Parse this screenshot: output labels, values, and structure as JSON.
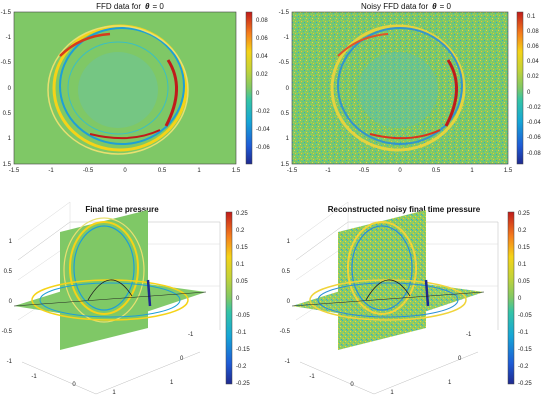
{
  "chart_data": [
    {
      "type": "heatmap",
      "title_prefix": "FFD data for",
      "title_theta": "θ",
      "title_suffix": "= 0",
      "xticks": [
        "-1.5",
        "-1",
        "-0.5",
        "0",
        "0.5",
        "1",
        "1.5"
      ],
      "yticks": [
        "-1.5",
        "-1",
        "-0.5",
        "0",
        "0.5",
        "1",
        "1.5"
      ],
      "xlim": [
        -1.5,
        1.5
      ],
      "ylim": [
        -1.5,
        1.5
      ],
      "colorbar": {
        "ticks": [
          "0.08",
          "0.06",
          "0.04",
          "0.02",
          "0",
          "-0.02",
          "-0.04",
          "-0.06"
        ],
        "range": [
          -0.075,
          0.09
        ]
      }
    },
    {
      "type": "heatmap",
      "title_prefix": "Noisy FFD data for",
      "title_theta": "θ",
      "title_suffix": "= 0",
      "xticks": [
        "-1.5",
        "-1",
        "-0.5",
        "0",
        "0.5",
        "1",
        "1.5"
      ],
      "yticks": [
        "-1.5",
        "-1",
        "-0.5",
        "0",
        "0.5",
        "1",
        "1.5"
      ],
      "xlim": [
        -1.5,
        1.5
      ],
      "ylim": [
        -1.5,
        1.5
      ],
      "colorbar": {
        "ticks": [
          "0.1",
          "0.08",
          "0.06",
          "0.04",
          "0.02",
          "0",
          "-0.02",
          "-0.04",
          "-0.06",
          "-0.08"
        ],
        "range": [
          -0.09,
          0.11
        ]
      }
    },
    {
      "type": "heatmap",
      "title": "Final time pressure",
      "zticks": [
        "1",
        "0.5",
        "0",
        "-0.5",
        "-1"
      ],
      "xticks": [
        "-1",
        "0",
        "1"
      ],
      "yticks": [
        "-1",
        "0",
        "1"
      ],
      "colorbar": {
        "ticks": [
          "0.25",
          "0.2",
          "0.15",
          "0.1",
          "0.05",
          "0",
          "-0.05",
          "-0.1",
          "-0.15",
          "-0.2",
          "-0.25"
        ],
        "range": [
          -0.25,
          0.25
        ]
      }
    },
    {
      "type": "heatmap",
      "title": "Reconstructed noisy final time pressure",
      "zticks": [
        "1",
        "0.5",
        "0",
        "-0.5",
        "-1"
      ],
      "xticks": [
        "-1",
        "0",
        "1"
      ],
      "yticks": [
        "-1",
        "0",
        "1"
      ],
      "colorbar": {
        "ticks": [
          "0.25",
          "0.2",
          "0.15",
          "0.1",
          "0.05",
          "0",
          "-0.05",
          "-0.1",
          "-0.15",
          "-0.2",
          "-0.25"
        ],
        "range": [
          -0.25,
          0.25
        ]
      }
    }
  ],
  "colors": {
    "background_level": "#7fc866"
  }
}
